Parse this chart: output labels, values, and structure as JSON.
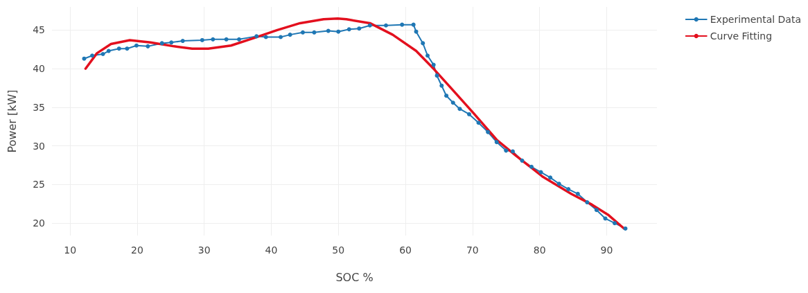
{
  "chart_data": {
    "type": "line",
    "xlabel": "SOC %",
    "ylabel": "Power [kW]",
    "xlim": [
      7.3,
      97.5
    ],
    "ylim": [
      18.4,
      48
    ],
    "xticks": [
      10,
      20,
      30,
      40,
      50,
      60,
      70,
      80,
      90
    ],
    "yticks": [
      20,
      25,
      30,
      35,
      40,
      45
    ],
    "grid": true,
    "legend": "top right",
    "line_style": "solid",
    "series": [
      {
        "name": "Experimental Data",
        "color": "#1f77b4",
        "marker": "circle",
        "x": [
          12.1,
          13.3,
          14.9,
          15.75,
          17.3,
          18.5,
          19.9,
          21.6,
          23.7,
          25.1,
          26.8,
          29.7,
          31.3,
          33.3,
          35.2,
          37.8,
          39.2,
          41.4,
          42.8,
          44.7,
          46.4,
          48.5,
          50.0,
          51.6,
          53.1,
          54.7,
          57.1,
          59.5,
          61.2,
          61.6,
          62.6,
          63.3,
          64.2,
          64.7,
          65.4,
          66.1,
          67.1,
          68.1,
          69.5,
          70.9,
          72.3,
          73.6,
          75.0,
          76.0,
          77.4,
          78.8,
          80.2,
          81.6,
          82.9,
          84.3,
          85.7,
          87.1,
          88.5,
          89.8,
          91.2,
          92.8
        ],
        "values": [
          41.3,
          41.7,
          41.9,
          42.3,
          42.6,
          42.6,
          43.0,
          42.9,
          43.3,
          43.4,
          43.6,
          43.7,
          43.8,
          43.8,
          43.8,
          44.2,
          44.1,
          44.1,
          44.4,
          44.7,
          44.7,
          44.9,
          44.8,
          45.1,
          45.2,
          45.6,
          45.6,
          45.7,
          45.7,
          44.8,
          43.3,
          41.7,
          40.5,
          39.1,
          37.8,
          36.5,
          35.6,
          34.8,
          34.1,
          33.0,
          31.8,
          30.5,
          29.4,
          29.3,
          28.1,
          27.3,
          26.6,
          25.9,
          25.1,
          24.4,
          23.8,
          22.7,
          21.7,
          20.6,
          20.0,
          19.3
        ]
      },
      {
        "name": "Curve Fitting",
        "color": "#e3101e",
        "marker": "none",
        "x": [
          12.3,
          14.0,
          16.1,
          18.9,
          22.0,
          25.5,
          28.2,
          30.6,
          34.0,
          37.5,
          40.9,
          44.3,
          47.8,
          49.9,
          51.2,
          54.7,
          58.1,
          61.6,
          64.3,
          67.1,
          70.2,
          73.6,
          76.4,
          80.5,
          84.7,
          87.8,
          90.2,
          92.6
        ],
        "values": [
          40.0,
          42.0,
          43.2,
          43.7,
          43.4,
          42.9,
          42.6,
          42.6,
          43.0,
          44.0,
          45.0,
          45.9,
          46.4,
          46.5,
          46.4,
          45.9,
          44.4,
          42.3,
          39.9,
          37.2,
          34.2,
          30.8,
          28.8,
          26.0,
          23.8,
          22.4,
          21.1,
          19.3
        ]
      }
    ]
  }
}
